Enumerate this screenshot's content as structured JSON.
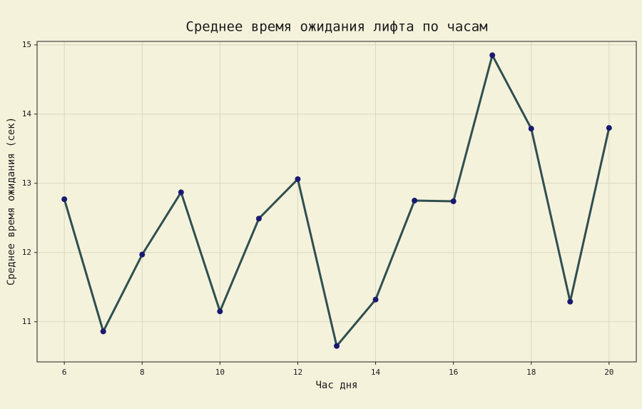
{
  "chart_data": {
    "type": "line",
    "title": "Среднее время ожидания лифта по часам",
    "x_label": "Час дня",
    "y_label": "Среднее время ожидания (сек)",
    "x": [
      6,
      7,
      8,
      9,
      10,
      11,
      12,
      13,
      14,
      15,
      16,
      17,
      18,
      19,
      20
    ],
    "series": [
      {
        "color": "#2f4f4f",
        "marker_color": "#191970",
        "values": [
          12.77,
          10.86,
          11.97,
          12.87,
          11.15,
          12.49,
          13.06,
          10.65,
          11.32,
          12.75,
          12.74,
          14.85,
          13.79,
          11.29,
          13.8
        ]
      }
    ],
    "xlim": [
      5.3,
      20.7
    ],
    "ylim": [
      10.42,
      15.05
    ],
    "xticks": [
      6,
      8,
      10,
      12,
      14,
      16,
      18,
      20
    ],
    "yticks": [
      11,
      12,
      13,
      14,
      15
    ],
    "grid": true
  }
}
